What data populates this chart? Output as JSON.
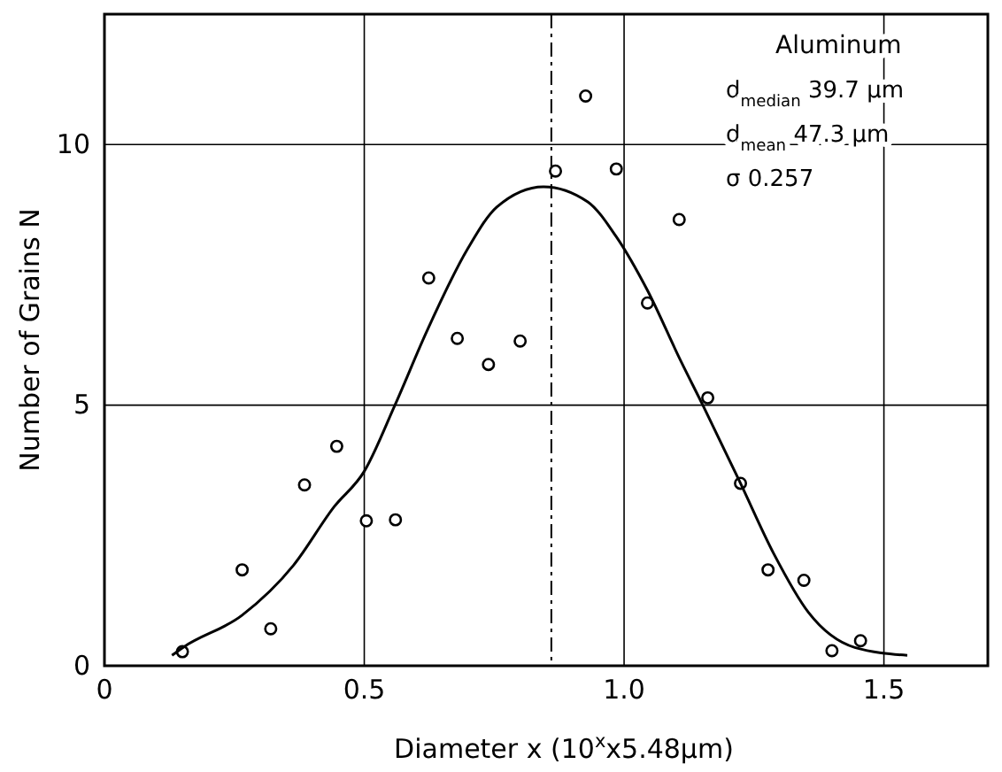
{
  "chart_data": {
    "type": "scatter",
    "xlabel": "Diameter   x  (10$^{x}$x5.48μm)",
    "ylabel": "Number  of  Grains    N",
    "xlim": [
      0,
      1.7
    ],
    "ylim": [
      0,
      12.5
    ],
    "xticks": [
      0,
      0.5,
      {
        "value": 1,
        "label": "1.0"
      },
      1.5
    ],
    "yticks": [
      0,
      5,
      10
    ],
    "grid": true,
    "marker": "circle",
    "ref_lines": [
      {
        "axis": "x",
        "value": 0.86,
        "line_style": "dashed"
      }
    ],
    "annotations": [
      "Aluminum",
      "d$_{median}$   39.7  μm",
      "d$_{mean}$   47.3  μm",
      "σ   0.257"
    ],
    "series": [
      {
        "color": "#000000",
        "x": [
          0.15,
          0.265,
          0.32,
          0.385,
          0.447,
          0.504,
          0.56,
          0.624,
          0.679,
          0.739,
          0.8,
          0.868,
          0.926,
          0.985,
          1.045,
          1.106,
          1.161,
          1.224,
          1.277,
          1.346,
          1.4,
          1.455
        ],
        "values": [
          0.27,
          1.84,
          0.71,
          3.47,
          4.21,
          2.78,
          2.8,
          7.44,
          6.28,
          5.78,
          6.23,
          9.49,
          10.93,
          9.53,
          6.96,
          8.56,
          5.14,
          3.5,
          1.84,
          1.64,
          0.29,
          0.48
        ]
      },
      {
        "type": "line",
        "color": "#000000",
        "marker": "none",
        "x": [
          0.13,
          0.151,
          0.265,
          0.364,
          0.442,
          0.5,
          0.559,
          0.621,
          0.699,
          0.755,
          0.845,
          0.93,
          0.985,
          1.045,
          1.108,
          1.153,
          1.224,
          1.288,
          1.355,
          1.444,
          1.545
        ],
        "values": [
          0.2,
          0.35,
          0.97,
          1.93,
          3.05,
          3.73,
          5,
          6.43,
          8,
          8.8,
          9.19,
          8.9,
          8.23,
          7.2,
          5.87,
          4.97,
          3.5,
          2.15,
          1.02,
          0.35,
          0.2
        ]
      }
    ]
  }
}
